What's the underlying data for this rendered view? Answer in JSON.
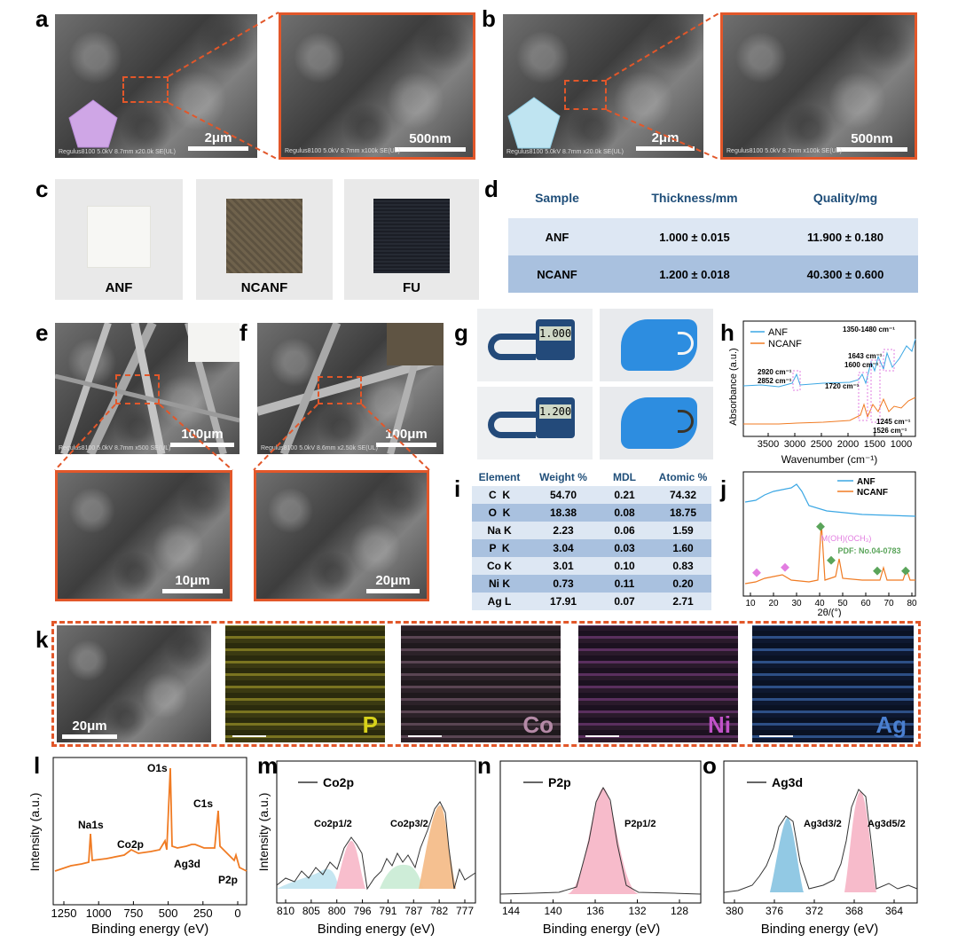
{
  "labels": {
    "a": "a",
    "b": "b",
    "c": "c",
    "d": "d",
    "e": "e",
    "f": "f",
    "g": "g",
    "h": "h",
    "i": "i",
    "j": "j",
    "k": "k",
    "l": "l",
    "m": "m",
    "n": "n",
    "o": "o"
  },
  "panel_a": {
    "scale_main": "2μm",
    "scale_zoom": "500nm",
    "meta_main": "Regulus8100 5.0kV 8.7mm x20.0k SE(UL)",
    "meta_zoom": "Regulus8100 5.0kV 8.7mm x100k SE(UL)"
  },
  "panel_b": {
    "scale_main": "2μm",
    "scale_zoom": "500nm",
    "meta_main": "Regulus8100 5.0kV 8.7mm x20.0k SE(UL)",
    "meta_zoom": "Regulus8100 5.0kV 8.7mm x100k SE(UL)"
  },
  "panel_c": {
    "samples": [
      "ANF",
      "NCANF",
      "FU"
    ]
  },
  "panel_d": {
    "headers": [
      "Sample",
      "Thickness/mm",
      "Quality/mg"
    ],
    "rows": [
      [
        "ANF",
        "1.000 ± 0.015",
        "11.900 ± 0.180"
      ],
      [
        "NCANF",
        "1.200 ± 0.018",
        "40.300 ± 0.600"
      ]
    ],
    "colors": {
      "header": "#1f4e79",
      "row1": "#dde7f3",
      "row2": "#a9c1df"
    }
  },
  "panel_e": {
    "scale_main": "100μm",
    "scale_zoom": "10μm",
    "meta": "Regulus8100 5.0kV 8.7mm x500 SE(UL)"
  },
  "panel_f": {
    "scale_main": "100μm",
    "scale_zoom": "20μm",
    "meta": "Regulus8100 5.0kV 8.6mm x2.50k SE(UL)"
  },
  "panel_g": {
    "readings": [
      "1.000",
      "1.200"
    ]
  },
  "panel_h": {
    "chart_data": {
      "type": "line",
      "xlabel": "Wavenumber (cm⁻¹)",
      "ylabel": "Absorbance (a.u.)",
      "xlim": [
        4000,
        600
      ],
      "xticks": [
        "3500",
        "3000",
        "2500",
        "2000",
        "1500",
        "1000"
      ],
      "series": [
        {
          "name": "ANF",
          "color": "#3ba7e4"
        },
        {
          "name": "NCANF",
          "color": "#f07b23"
        }
      ],
      "annotations": [
        "1350-1480 cm⁻¹",
        "1643 cm⁻¹",
        "1600 cm⁻¹",
        "2920 cm⁻¹",
        "2852 cm⁻¹",
        "1720 cm⁻¹",
        "1245 cm⁻¹",
        "1526 cm⁻¹"
      ]
    }
  },
  "panel_i": {
    "headers": [
      "Element",
      "Weight %",
      "MDL",
      "Atomic %"
    ],
    "rows": [
      [
        "C  K",
        "54.70",
        "0.21",
        "74.32"
      ],
      [
        "O  K",
        "18.38",
        "0.08",
        "18.75"
      ],
      [
        "Na K",
        "2.23",
        "0.06",
        "1.59"
      ],
      [
        "P  K",
        "3.04",
        "0.03",
        "1.60"
      ],
      [
        "Co K",
        "3.01",
        "0.10",
        "0.83"
      ],
      [
        "Ni K",
        "0.73",
        "0.11",
        "0.20"
      ],
      [
        "Ag L",
        "17.91",
        "0.07",
        "2.71"
      ]
    ]
  },
  "panel_j": {
    "chart_data": {
      "type": "line",
      "xlabel": "2θ/(°)",
      "xlim": [
        8,
        80
      ],
      "xticks": [
        "10",
        "20",
        "30",
        "40",
        "50",
        "60",
        "70",
        "80"
      ],
      "series": [
        {
          "name": "ANF",
          "color": "#3ba7e4"
        },
        {
          "name": "NCANF",
          "color": "#f07b23"
        }
      ],
      "annotations": [
        "M(OH)(OCH₃)",
        "PDF: No.04-0783"
      ],
      "marker_colors": {
        "pink": "#e27de0",
        "green": "#5aa45a"
      }
    }
  },
  "panel_k": {
    "scale": "20μm",
    "elements": [
      "P",
      "Co",
      "Ni",
      "Ag"
    ],
    "element_colors": [
      "#d8d21a",
      "#b58aa7",
      "#c152c8",
      "#4a7fd0"
    ]
  },
  "panel_l": {
    "chart_data": {
      "type": "line",
      "xlabel": "Binding energy (eV)",
      "ylabel": "Intensity (a.u.)",
      "xlim": [
        1350,
        0
      ],
      "xticks": [
        "1250",
        "1000",
        "750",
        "500",
        "250",
        "0"
      ],
      "peaks": [
        "Na1s",
        "O1s",
        "C1s",
        "Co2p",
        "Ag3d",
        "P2p"
      ],
      "color": "#f07b23"
    }
  },
  "panel_m": {
    "chart_data": {
      "type": "line",
      "legend": "Co2p",
      "xlabel": "Binding energy (eV)",
      "ylabel": "Intensity (a.u.)",
      "xlim": [
        811,
        775
      ],
      "xticks": [
        "810",
        "805",
        "800",
        "796",
        "791",
        "787",
        "782",
        "777"
      ],
      "peaks": [
        "Co2p1/2",
        "Co2p3/2"
      ]
    }
  },
  "panel_n": {
    "chart_data": {
      "type": "line",
      "legend": "P2p",
      "xlabel": "Binding energy (eV)",
      "ylabel": "Intensity (a.u.)",
      "xlim": [
        144,
        125
      ],
      "xticks": [
        "144",
        "140",
        "136",
        "132",
        "128"
      ],
      "peaks": [
        "P2p1/2"
      ]
    }
  },
  "panel_o": {
    "chart_data": {
      "type": "line",
      "legend": "Ag3d",
      "xlabel": "Binding energy (eV)",
      "ylabel": "Intensity (a.u.)",
      "xlim": [
        380,
        360
      ],
      "xticks": [
        "380",
        "376",
        "372",
        "368",
        "364"
      ],
      "peaks": [
        "Ag3d3/2",
        "Ag3d5/2"
      ]
    }
  }
}
